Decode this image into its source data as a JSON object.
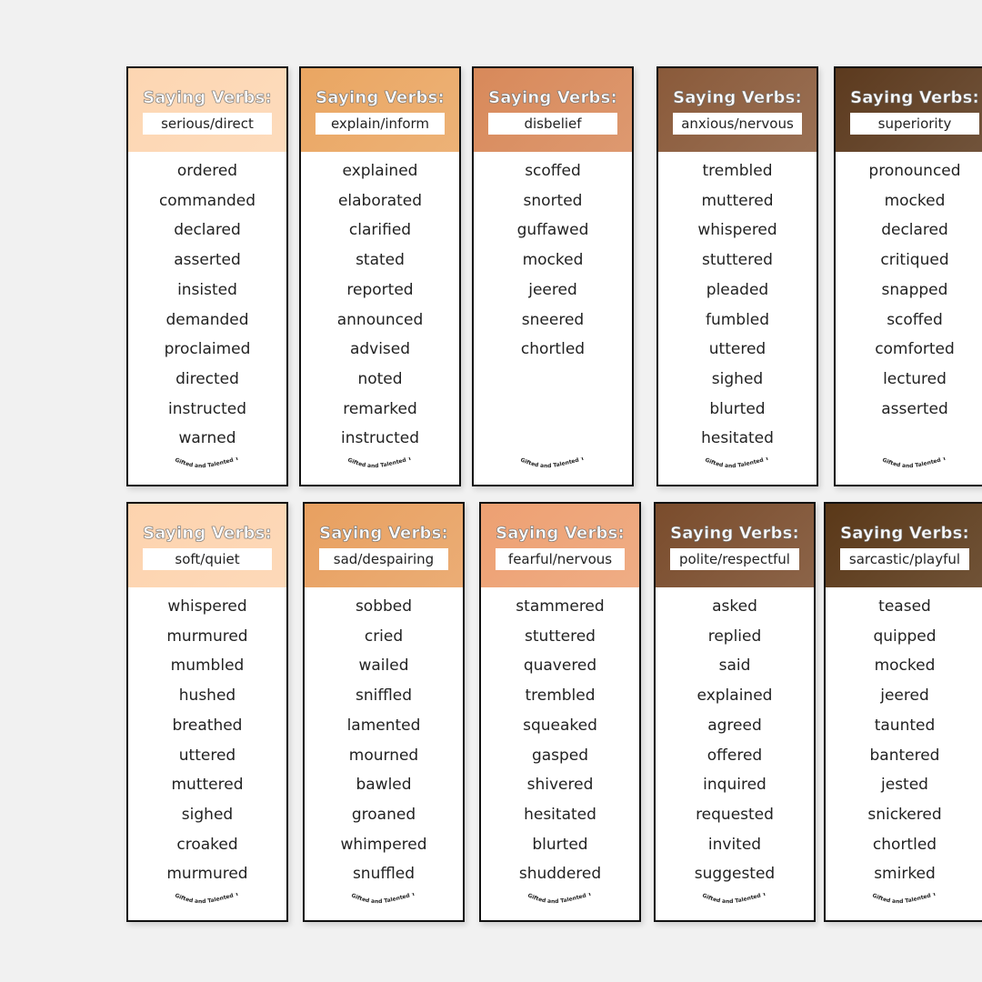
{
  "heading": "Saying Verbs:",
  "logo_text": "Gifted and Talented Teacher",
  "cards": [
    {
      "category": "serious/direct",
      "color": "#fdd6b2",
      "words": [
        "ordered",
        "commanded",
        "declared",
        "asserted",
        "insisted",
        "demanded",
        "proclaimed",
        "directed",
        "instructed",
        "warned"
      ]
    },
    {
      "category": "explain/inform",
      "color": "#eaa662",
      "words": [
        "explained",
        "elaborated",
        "clarified",
        "stated",
        "reported",
        "announced",
        "advised",
        "noted",
        "remarked",
        "instructed"
      ]
    },
    {
      "category": "disbelief",
      "color": "#d8895a",
      "words": [
        "scoffed",
        "snorted",
        "guffawed",
        "mocked",
        "jeered",
        "sneered",
        "chortled"
      ]
    },
    {
      "category": "anxious/nervous",
      "color": "#8a5a3a",
      "words": [
        "trembled",
        "muttered",
        "whispered",
        "stuttered",
        "pleaded",
        "fumbled",
        "uttered",
        "sighed",
        "blurted",
        "hesitated"
      ]
    },
    {
      "category": "superiority",
      "color": "#5c3a1e",
      "words": [
        "pronounced",
        "mocked",
        "declared",
        "critiqued",
        "snapped",
        "scoffed",
        "comforted",
        "lectured",
        "asserted"
      ]
    },
    {
      "category": "soft/quiet",
      "color": "#fdd3ae",
      "words": [
        "whispered",
        "murmured",
        "mumbled",
        "hushed",
        "breathed",
        "uttered",
        "muttered",
        "sighed",
        "croaked",
        "murmured"
      ]
    },
    {
      "category": "sad/despairing",
      "color": "#e8a060",
      "words": [
        "sobbed",
        "cried",
        "wailed",
        "sniffled",
        "lamented",
        "mourned",
        "bawled",
        "groaned",
        "whimpered",
        "snuffled"
      ]
    },
    {
      "category": "fearful/nervous",
      "color": "#eda072",
      "words": [
        "stammered",
        "stuttered",
        "quavered",
        "trembled",
        "squeaked",
        "gasped",
        "shivered",
        "hesitated",
        "blurted",
        "shuddered"
      ]
    },
    {
      "category": "polite/respectful",
      "color": "#7a4c2c",
      "words": [
        "asked",
        "replied",
        "said",
        "explained",
        "agreed",
        "offered",
        "inquired",
        "requested",
        "invited",
        "suggested"
      ]
    },
    {
      "category": "sarcastic/playful",
      "color": "#5a3818",
      "words": [
        "teased",
        "quipped",
        "mocked",
        "jeered",
        "taunted",
        "bantered",
        "jested",
        "snickered",
        "chortled",
        "smirked"
      ]
    }
  ]
}
